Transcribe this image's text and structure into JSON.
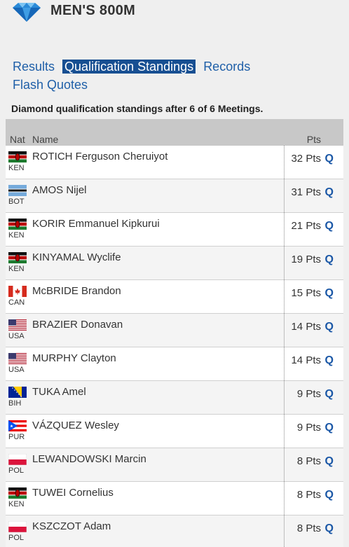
{
  "header": {
    "title": "MEN'S 800M",
    "logo_icon": "diamond-icon"
  },
  "nav": {
    "items": [
      {
        "label": "Results",
        "active": false
      },
      {
        "label": "Qualification Standings",
        "active": true
      },
      {
        "label": "Records",
        "active": false
      },
      {
        "label": "Flash Quotes",
        "active": false
      }
    ]
  },
  "caption": "Diamond qualification standings after 6 of 6 Meetings.",
  "table": {
    "headers": {
      "nat": "Nat",
      "name": "Name",
      "pts": "Pts"
    },
    "rows": [
      {
        "nat": "KEN",
        "name": "ROTICH Ferguson Cheruiyot",
        "pts": "32 Pts",
        "q": "Q"
      },
      {
        "nat": "BOT",
        "name": "AMOS Nijel",
        "pts": "31 Pts",
        "q": "Q"
      },
      {
        "nat": "KEN",
        "name": "KORIR Emmanuel Kipkurui",
        "pts": "21 Pts",
        "q": "Q"
      },
      {
        "nat": "KEN",
        "name": "KINYAMAL Wyclife",
        "pts": "19 Pts",
        "q": "Q"
      },
      {
        "nat": "CAN",
        "name": "McBRIDE Brandon",
        "pts": "15 Pts",
        "q": "Q"
      },
      {
        "nat": "USA",
        "name": "BRAZIER Donavan",
        "pts": "14 Pts",
        "q": "Q"
      },
      {
        "nat": "USA",
        "name": "MURPHY Clayton",
        "pts": "14 Pts",
        "q": "Q"
      },
      {
        "nat": "BIH",
        "name": "TUKA Amel",
        "pts": "9 Pts",
        "q": "Q"
      },
      {
        "nat": "PUR",
        "name": "VÁZQUEZ Wesley",
        "pts": "9 Pts",
        "q": "Q"
      },
      {
        "nat": "POL",
        "name": "LEWANDOWSKI Marcin",
        "pts": "8 Pts",
        "q": "Q"
      },
      {
        "nat": "KEN",
        "name": "TUWEI Cornelius",
        "pts": "8 Pts",
        "q": "Q"
      },
      {
        "nat": "POL",
        "name": "KSZCZOT Adam",
        "pts": "8 Pts",
        "q": "Q"
      }
    ]
  }
}
